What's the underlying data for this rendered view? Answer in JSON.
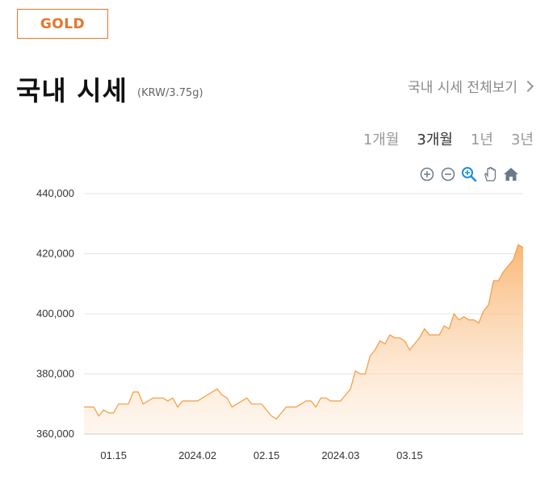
{
  "badge": {
    "label": "GOLD"
  },
  "header": {
    "title": "국내 시세",
    "unit": "(KRW/3.75g)",
    "view_all": "국내 시세 전체보기"
  },
  "periods": [
    {
      "label": "1개월",
      "active": false
    },
    {
      "label": "3개월",
      "active": true
    },
    {
      "label": "1년",
      "active": false
    },
    {
      "label": "3년",
      "active": false
    }
  ],
  "toolbar": [
    "zoom-in-icon",
    "zoom-out-icon",
    "magnifier-icon",
    "pan-hand-icon",
    "home-icon"
  ],
  "colors": {
    "accent": "#e8742a",
    "line": "#f59a3e",
    "fill_top": "#f9b46f",
    "grid": "#e6e6e6"
  },
  "chart_data": {
    "type": "area",
    "title": "",
    "xlabel": "",
    "ylabel": "",
    "ylim": [
      360000,
      440000
    ],
    "yticks": [
      "360,000",
      "380,000",
      "400,000",
      "420,000",
      "440,000"
    ],
    "ytick_values": [
      360000,
      380000,
      400000,
      420000,
      440000
    ],
    "xticks": [
      "01.15",
      "2024.02",
      "02.15",
      "2024.03",
      "03.15"
    ],
    "xtick_dates": [
      "2024-01-15",
      "2024-02-01",
      "2024-02-15",
      "2024-03-01",
      "2024-03-15"
    ],
    "xlim": [
      "2024-01-09",
      "2024-04-07"
    ],
    "grid": true,
    "series": [
      {
        "x": [
          "2024-01-09",
          "2024-01-10",
          "2024-01-11",
          "2024-01-12",
          "2024-01-13",
          "2024-01-14",
          "2024-01-15",
          "2024-01-16",
          "2024-01-17",
          "2024-01-18",
          "2024-01-19",
          "2024-01-20",
          "2024-01-21",
          "2024-01-22",
          "2024-01-23",
          "2024-01-24",
          "2024-01-25",
          "2024-01-26",
          "2024-01-27",
          "2024-01-28",
          "2024-01-29",
          "2024-01-30",
          "2024-01-31",
          "2024-02-01",
          "2024-02-02",
          "2024-02-03",
          "2024-02-04",
          "2024-02-05",
          "2024-02-06",
          "2024-02-07",
          "2024-02-08",
          "2024-02-09",
          "2024-02-10",
          "2024-02-11",
          "2024-02-12",
          "2024-02-13",
          "2024-02-14",
          "2024-02-15",
          "2024-02-16",
          "2024-02-17",
          "2024-02-18",
          "2024-02-19",
          "2024-02-20",
          "2024-02-21",
          "2024-02-22",
          "2024-02-23",
          "2024-02-24",
          "2024-02-25",
          "2024-02-26",
          "2024-02-27",
          "2024-02-28",
          "2024-02-29",
          "2024-03-01",
          "2024-03-02",
          "2024-03-03",
          "2024-03-04",
          "2024-03-05",
          "2024-03-06",
          "2024-03-07",
          "2024-03-08",
          "2024-03-09",
          "2024-03-10",
          "2024-03-11",
          "2024-03-12",
          "2024-03-13",
          "2024-03-14",
          "2024-03-15",
          "2024-03-16",
          "2024-03-17",
          "2024-03-18",
          "2024-03-19",
          "2024-03-20",
          "2024-03-21",
          "2024-03-22",
          "2024-03-23",
          "2024-03-24",
          "2024-03-25",
          "2024-03-26",
          "2024-03-27",
          "2024-03-28",
          "2024-03-29",
          "2024-03-30",
          "2024-03-31",
          "2024-04-01",
          "2024-04-02",
          "2024-04-03",
          "2024-04-04",
          "2024-04-05",
          "2024-04-06",
          "2024-04-07"
        ],
        "values": [
          369000,
          369000,
          369000,
          366000,
          368000,
          367000,
          367000,
          370000,
          370000,
          370000,
          374000,
          374000,
          370000,
          371000,
          372000,
          372000,
          372000,
          371000,
          372000,
          369000,
          371000,
          371000,
          371000,
          371000,
          372000,
          373000,
          374000,
          375000,
          373000,
          372000,
          369000,
          370000,
          371000,
          372000,
          370000,
          370000,
          370000,
          368000,
          366000,
          365000,
          367000,
          369000,
          369000,
          369000,
          370000,
          371000,
          371000,
          369000,
          372000,
          372000,
          371000,
          371000,
          371000,
          373000,
          375000,
          381000,
          380000,
          380000,
          386000,
          388000,
          391000,
          390000,
          393000,
          392000,
          392000,
          391000,
          388000,
          390000,
          392000,
          395000,
          393000,
          393000,
          393000,
          396000,
          395000,
          400000,
          398000,
          399000,
          398000,
          398000,
          397000,
          401000,
          403000,
          411000,
          411000,
          414000,
          416000,
          418000,
          423000,
          422000
        ]
      }
    ]
  }
}
